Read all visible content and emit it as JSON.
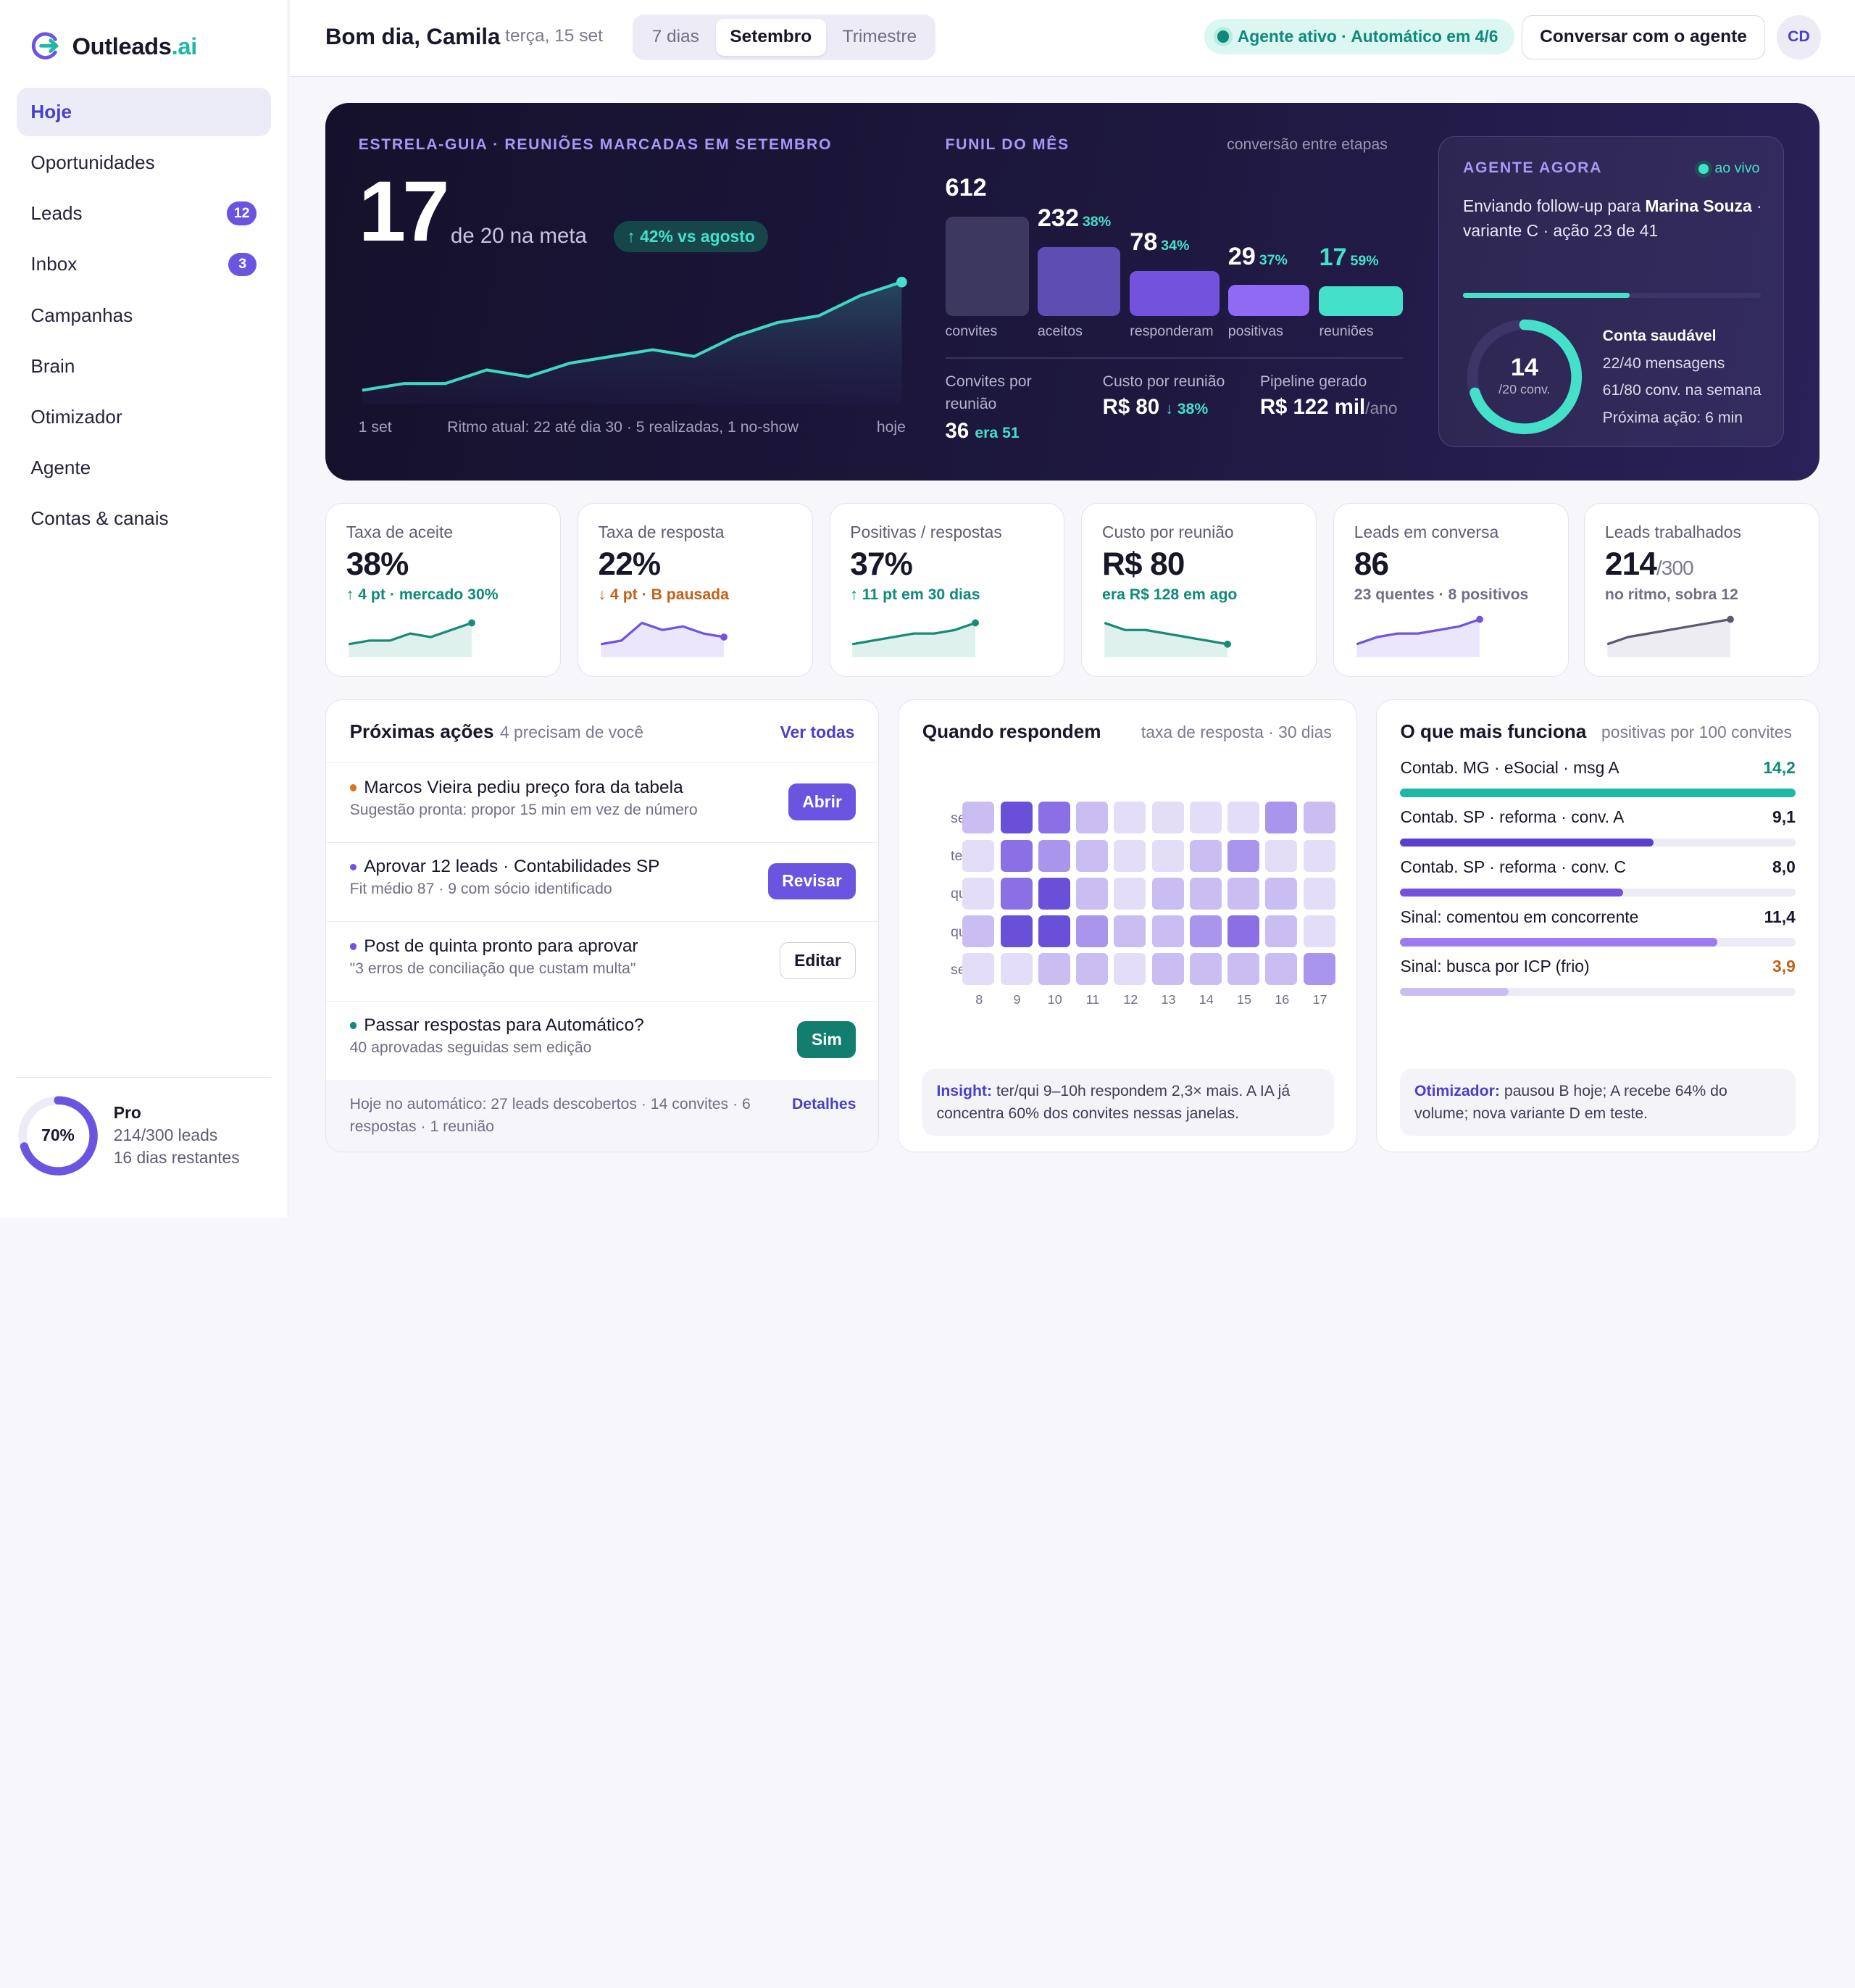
{
  "app": {
    "logo_text": "Outleads",
    "logo_accent": ".ai"
  },
  "sidebar": {
    "items": [
      {
        "label": "Hoje",
        "badge": ""
      },
      {
        "label": "Oportunidades",
        "badge": ""
      },
      {
        "label": "Leads",
        "badge": "12"
      },
      {
        "label": "Inbox",
        "badge": "3"
      },
      {
        "label": "Campanhas",
        "badge": ""
      },
      {
        "label": "Brain",
        "badge": ""
      },
      {
        "label": "Otimizador",
        "badge": ""
      },
      {
        "label": "Agente",
        "badge": ""
      },
      {
        "label": "Contas & canais",
        "badge": ""
      }
    ],
    "plan": {
      "percent_label": "70%",
      "usage_fraction": 0.7,
      "name": "Pro",
      "leads": "214/300 leads",
      "days": "16 dias restantes"
    }
  },
  "header": {
    "greeting": "Bom dia, Camila",
    "date": "terça, 15 set",
    "periods": [
      "7 dias",
      "Setembro",
      "Trimestre"
    ],
    "active_period": "Setembro",
    "status": "Agente ativo · Automático em 4/6",
    "chat_button": "Conversar com o agente",
    "avatar": "CD"
  },
  "hero": {
    "label": "ESTRELA-GUIA · REUNIÕES MARCADAS EM SETEMBRO",
    "value": "17",
    "meta": "de 20 na meta",
    "delta": "↑ 42% vs agosto",
    "trend": [
      2,
      3,
      3,
      5,
      4,
      6,
      7,
      8,
      7,
      10,
      12,
      13,
      16,
      18
    ],
    "x_start": "1 set",
    "pace": "Ritmo atual: 22 até dia 30 · 5 realizadas, 1 no-show",
    "x_end": "hoje"
  },
  "funnel": {
    "label": "FUNIL DO MÊS",
    "sub": "conversão entre etapas",
    "stages": [
      {
        "value": "612",
        "conv": "",
        "label": "convites",
        "n": 612,
        "color": "#3d3860"
      },
      {
        "value": "232",
        "conv": "38%",
        "label": "aceitos",
        "n": 232,
        "color": "#5e4db3"
      },
      {
        "value": "78",
        "conv": "34%",
        "label": "responderam",
        "n": 78,
        "color": "#7353de"
      },
      {
        "value": "29",
        "conv": "37%",
        "label": "positivas",
        "n": 29,
        "color": "#8f6af5"
      },
      {
        "value": "17",
        "conv": "59%",
        "label": "reuniões",
        "n": 17,
        "color": "#45e0ca"
      }
    ],
    "stats": [
      {
        "label": "Convites por reunião",
        "value": "36",
        "note": "era 51"
      },
      {
        "label": "Custo por reunião",
        "value": "R$ 80",
        "note": "↓ 38%"
      },
      {
        "label": "Pipeline gerado",
        "value": "R$ 122 mil",
        "unit": "/ano"
      }
    ]
  },
  "agent": {
    "label": "AGENTE AGORA",
    "live": "ao vivo",
    "msg_prefix": "Enviando follow-up para ",
    "msg_name": "Marina Souza",
    "msg_suffix": " · variante C · ação 23 de 41",
    "progress": 0.56,
    "ring_value": "14",
    "ring_sub": "/20 conv.",
    "ring_fraction": 0.7,
    "health_title": "Conta saudável",
    "health_lines": [
      "22/40 mensagens",
      "61/80 conv. na semana",
      "Próxima ação: 6 min"
    ]
  },
  "kpis": [
    {
      "label": "Taxa de aceite",
      "value": "38%",
      "unit": "",
      "delta": "↑ 4 pt · mercado 30%",
      "tone": "#0f8a7a",
      "spark": [
        3,
        4,
        4,
        6,
        5,
        7,
        9
      ],
      "color": "#1a8a78",
      "fill": "#dff1ed"
    },
    {
      "label": "Taxa de resposta",
      "value": "22%",
      "unit": "",
      "delta": "↓ 4 pt · B pausada",
      "tone": "#c0621a",
      "spark": [
        3,
        4,
        9,
        7,
        8,
        6,
        5
      ],
      "color": "#7353de",
      "fill": "#ebe6fb"
    },
    {
      "label": "Positivas / respostas",
      "value": "37%",
      "unit": "",
      "delta": "↑ 11 pt em 30 dias",
      "tone": "#0f8a7a",
      "spark": [
        3,
        4,
        5,
        6,
        6,
        7,
        9
      ],
      "color": "#1a8a78",
      "fill": "#dff1ed"
    },
    {
      "label": "Custo por reunião",
      "value": "R$ 80",
      "unit": "",
      "delta": "era R$ 128 em ago",
      "tone": "#0f8a7a",
      "spark": [
        9,
        7,
        7,
        6,
        5,
        4,
        3
      ],
      "color": "#1a8a78",
      "fill": "#dff1ed"
    },
    {
      "label": "Leads em conversa",
      "value": "86",
      "unit": "",
      "delta": "23 quentes · 8 positivos",
      "tone": "#6f6f86",
      "spark": [
        3,
        5,
        6,
        6,
        7,
        8,
        10
      ],
      "color": "#7353de",
      "fill": "#ebe6fb"
    },
    {
      "label": "Leads trabalhados",
      "value": "214",
      "unit": "/300",
      "delta": "no ritmo, sobra 12",
      "tone": "#6f6f86",
      "spark": [
        3,
        5,
        6,
        7,
        8,
        9,
        10
      ],
      "color": "#5a5a70",
      "fill": "#ececf2"
    }
  ],
  "actions": {
    "title": "Próximas ações",
    "sub": "4 precisam de você",
    "link": "Ver todas",
    "items": [
      {
        "title": "Marcos Vieira pediu preço fora da tabela",
        "sub": "Sugestão pronta: propor 15 min em vez de número",
        "button": "Abrir",
        "dot": "#d9731f",
        "style": "primary"
      },
      {
        "title": "Aprovar 12 leads · Contabilidades SP",
        "sub": "Fit médio 87 · 9 com sócio identificado",
        "button": "Revisar",
        "dot": "#7353de",
        "style": "primary"
      },
      {
        "title": "Post de quinta pronto para aprovar",
        "sub": "\"3 erros de conciliação que custam multa\"",
        "button": "Editar",
        "dot": "#7353de",
        "style": "outline"
      },
      {
        "title": "Passar respostas para Automático?",
        "sub": "40 aprovadas seguidas sem edição",
        "button": "Sim",
        "dot": "#0f8a7a",
        "style": "teal"
      }
    ],
    "footer": "Hoje no automático: 27 leads descobertos · 14 convites · 6 respostas · 1 reunião",
    "footer_link": "Detalhes"
  },
  "heatmap": {
    "title": "Quando respondem",
    "sub": "taxa de resposta · 30 dias",
    "rows": [
      "seg",
      "ter",
      "qua",
      "qui",
      "sex"
    ],
    "cols": [
      "8",
      "9",
      "10",
      "11",
      "12",
      "13",
      "14",
      "15",
      "16",
      "17"
    ],
    "values": [
      [
        2,
        5,
        4,
        2,
        1,
        1,
        1,
        1,
        3,
        2
      ],
      [
        1,
        4,
        3,
        2,
        1,
        1,
        2,
        3,
        1,
        1
      ],
      [
        1,
        4,
        5,
        2,
        1,
        2,
        2,
        2,
        2,
        1
      ],
      [
        2,
        5,
        5,
        3,
        2,
        2,
        3,
        4,
        2,
        1
      ],
      [
        1,
        1,
        2,
        2,
        1,
        2,
        2,
        2,
        2,
        3
      ]
    ],
    "insight_label": "Insight:",
    "insight": " ter/qui 9–10h respondem 2,3× mais. A IA já concentra 60% dos convites nessas janelas."
  },
  "works": {
    "title": "O que mais funciona",
    "sub": "positivas por 100 convites",
    "rows": [
      {
        "label": "Contab. MG · eSocial · msg A",
        "value": "14,2",
        "n": 14.2,
        "color": "#1fb8a6",
        "tone": "#0f8a7a"
      },
      {
        "label": "Contab. SP · reforma · conv. A",
        "value": "9,1",
        "n": 9.1,
        "color": "#5b3fd0",
        "tone": "#17172a"
      },
      {
        "label": "Contab. SP · reforma · conv. C",
        "value": "8,0",
        "n": 8.0,
        "color": "#7353de",
        "tone": "#17172a"
      },
      {
        "label": "Sinal: comentou em concorrente",
        "value": "11,4",
        "n": 11.4,
        "color": "#9c7bf0",
        "tone": "#17172a"
      },
      {
        "label": "Sinal: busca por ICP (frio)",
        "value": "3,9",
        "n": 3.9,
        "color": "#c9bdf2",
        "tone": "#c0621a"
      }
    ],
    "note_label": "Otimizador:",
    "note": " pausou B hoje; A recebe 64% do volume; nova variante D em teste."
  }
}
